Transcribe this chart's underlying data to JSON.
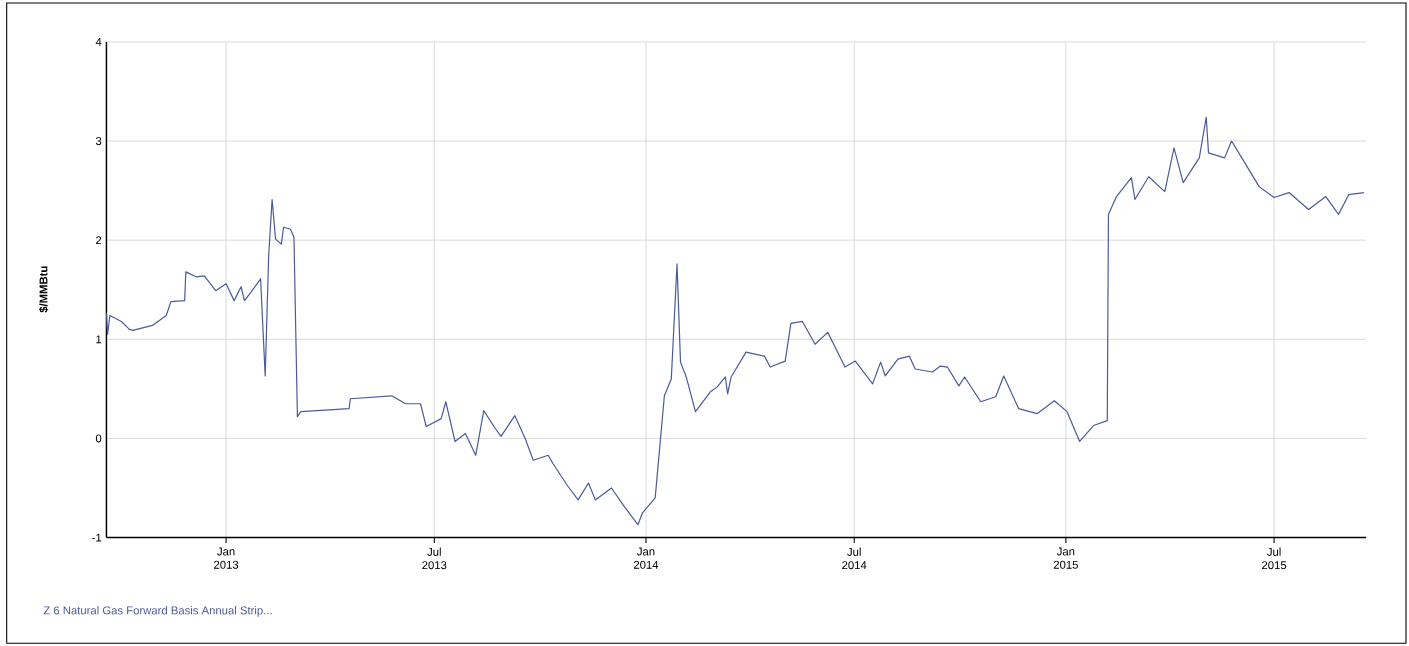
{
  "chart_data": {
    "type": "line",
    "ylabel": "$/MMBtu",
    "xlim": [
      "2012-09-19",
      "2015-09-19"
    ],
    "ylim": [
      -1,
      4
    ],
    "xticks": [
      {
        "value": "2013-01-01",
        "label": "Jan 2013"
      },
      {
        "value": "2013-07-01",
        "label": "Jul 2013"
      },
      {
        "value": "2014-01-01",
        "label": "Jan 2014"
      },
      {
        "value": "2014-07-01",
        "label": "Jul 2014"
      },
      {
        "value": "2015-01-01",
        "label": "Jan 2015"
      },
      {
        "value": "2015-07-01",
        "label": "Jul 2015"
      }
    ],
    "yticks": [
      -1,
      0,
      1,
      2,
      3,
      4
    ],
    "grid": true,
    "x": [
      "2012-09-19",
      "2012-09-20",
      "2012-09-22",
      "2012-10-02",
      "2012-10-09",
      "2012-10-12",
      "2012-10-29",
      "2012-11-10",
      "2012-11-14",
      "2012-11-26",
      "2012-11-27",
      "2012-12-06",
      "2012-12-13",
      "2012-12-23",
      "2013-01-01",
      "2013-01-08",
      "2013-01-14",
      "2013-01-17",
      "2013-01-23",
      "2013-01-31",
      "2013-02-04",
      "2013-02-07",
      "2013-02-10",
      "2013-02-13",
      "2013-02-18",
      "2013-02-20",
      "2013-02-26",
      "2013-03-01",
      "2013-03-04",
      "2013-03-07",
      "2013-04-18",
      "2013-04-19",
      "2013-05-25",
      "2013-06-06",
      "2013-06-19",
      "2013-06-24",
      "2013-07-07",
      "2013-07-11",
      "2013-07-19",
      "2013-07-28",
      "2013-08-06",
      "2013-08-13",
      "2013-08-23",
      "2013-08-28",
      "2013-09-09",
      "2013-09-18",
      "2013-09-25",
      "2013-10-08",
      "2013-10-12",
      "2013-10-25",
      "2013-11-03",
      "2013-11-12",
      "2013-11-18",
      "2013-12-02",
      "2013-12-14",
      "2013-12-25",
      "2013-12-29",
      "2014-01-09",
      "2014-01-17",
      "2014-01-23",
      "2014-01-28",
      "2014-01-31",
      "2014-02-05",
      "2014-02-13",
      "2014-02-26",
      "2014-03-04",
      "2014-03-11",
      "2014-03-13",
      "2014-03-16",
      "2014-03-29",
      "2014-04-14",
      "2014-04-19",
      "2014-05-02",
      "2014-05-07",
      "2014-05-17",
      "2014-05-28",
      "2014-06-08",
      "2014-06-23",
      "2014-07-02",
      "2014-07-17",
      "2014-07-24",
      "2014-07-28",
      "2014-08-08",
      "2014-08-18",
      "2014-08-23",
      "2014-09-07",
      "2014-09-14",
      "2014-09-20",
      "2014-09-30",
      "2014-10-05",
      "2014-10-19",
      "2014-11-01",
      "2014-11-08",
      "2014-11-21",
      "2014-12-07",
      "2014-12-22",
      "2015-01-02",
      "2015-01-13",
      "2015-01-25",
      "2015-02-06",
      "2015-02-07",
      "2015-02-14",
      "2015-02-27",
      "2015-03-02",
      "2015-03-14",
      "2015-03-28",
      "2015-04-05",
      "2015-04-13",
      "2015-04-27",
      "2015-05-03",
      "2015-05-05",
      "2015-05-19",
      "2015-05-25",
      "2015-06-04",
      "2015-06-18",
      "2015-07-01",
      "2015-07-14",
      "2015-07-31",
      "2015-08-15",
      "2015-08-26",
      "2015-09-04",
      "2015-09-17"
    ],
    "series": [
      {
        "name": "Z 6 Natural Gas Forward Basis Annual Strip...",
        "color": "#4a5a9a",
        "values": [
          1.26,
          1.05,
          1.24,
          1.18,
          1.1,
          1.09,
          1.14,
          1.24,
          1.38,
          1.39,
          1.68,
          1.63,
          1.64,
          1.49,
          1.56,
          1.39,
          1.53,
          1.39,
          1.48,
          1.61,
          0.63,
          1.84,
          2.41,
          2.01,
          1.96,
          2.13,
          2.11,
          2.03,
          0.22,
          0.27,
          0.3,
          0.4,
          0.43,
          0.35,
          0.35,
          0.12,
          0.2,
          0.37,
          -0.03,
          0.05,
          -0.17,
          0.28,
          0.1,
          0.02,
          0.23,
          0.0,
          -0.22,
          -0.17,
          -0.25,
          -0.48,
          -0.62,
          -0.45,
          -0.62,
          -0.5,
          -0.7,
          -0.87,
          -0.75,
          -0.6,
          0.43,
          0.6,
          1.76,
          0.77,
          0.62,
          0.27,
          0.47,
          0.52,
          0.62,
          0.45,
          0.62,
          0.87,
          0.83,
          0.72,
          0.78,
          1.16,
          1.18,
          0.95,
          1.07,
          0.72,
          0.78,
          0.55,
          0.77,
          0.63,
          0.8,
          0.83,
          0.7,
          0.67,
          0.73,
          0.72,
          0.53,
          0.62,
          0.37,
          0.42,
          0.63,
          0.3,
          0.25,
          0.38,
          0.27,
          -0.03,
          0.13,
          0.18,
          2.26,
          2.44,
          2.63,
          2.41,
          2.64,
          2.49,
          2.93,
          2.58,
          2.83,
          3.24,
          2.88,
          2.83,
          3.0,
          2.81,
          2.54,
          2.43,
          2.48,
          2.31,
          2.44,
          2.26,
          2.46,
          2.48
        ]
      }
    ]
  }
}
